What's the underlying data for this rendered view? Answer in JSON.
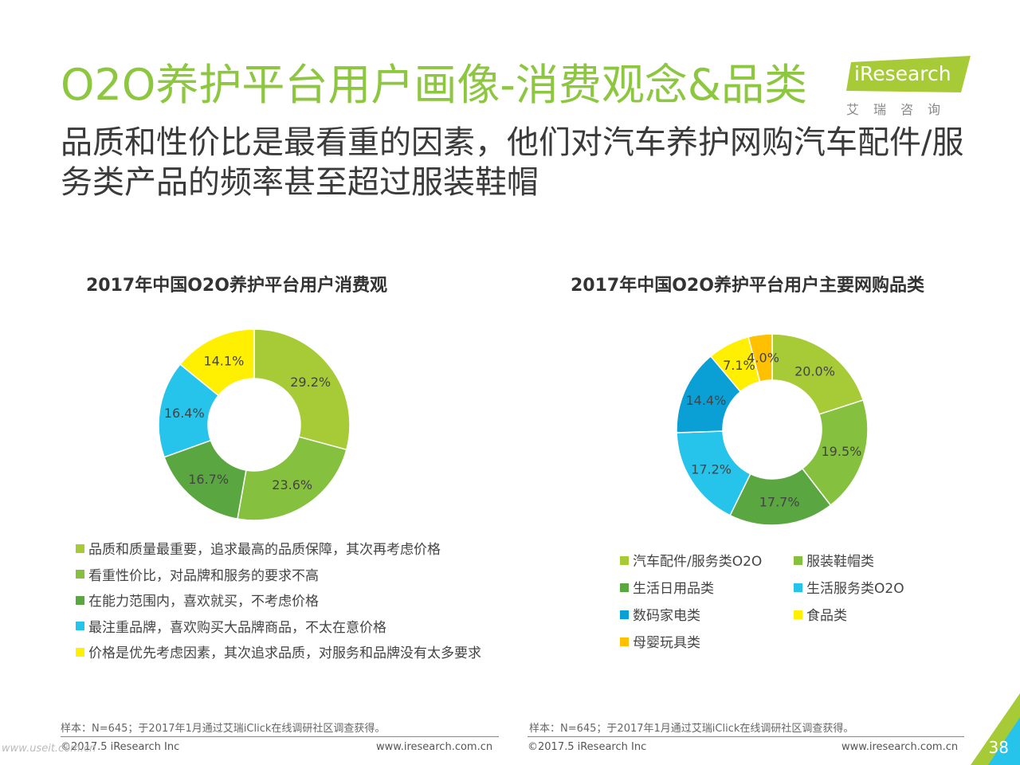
{
  "title": "O2O养护平台用户画像-消费观念&品类",
  "subtitle": "品质和性价比是最看重的因素，他们对汽车养护网购汽车配件/服务类产品的频率甚至超过服装鞋帽",
  "logo": {
    "brand": "iResearch",
    "cn": "艾瑞咨询"
  },
  "chart_data": [
    {
      "type": "pie",
      "title": "2017年中国O2O养护平台用户消费观",
      "labels": [
        "品质和质量最重要，追求最高的品质保障，其次再考虑价格",
        "看重性价比，对品牌和服务的要求不高",
        "在能力范围内，喜欢就买，不考虑价格",
        "最注重品牌，喜欢购买大品牌商品，不太在意价格",
        "价格是优先考虑因素，其次追求品质，对服务和品牌没有太多要求"
      ],
      "values": [
        29.2,
        23.6,
        16.7,
        16.4,
        14.1
      ],
      "value_labels": [
        "29.2%",
        "23.6%",
        "16.7%",
        "16.4%",
        "14.1%"
      ],
      "colors": [
        "#a6cb36",
        "#85c13f",
        "#5aa641",
        "#26c3ea",
        "#ffef00"
      ],
      "legend_position": "bottom"
    },
    {
      "type": "pie",
      "title": "2017年中国O2O养护平台用户主要网购品类",
      "labels": [
        "汽车配件/服务类O2O",
        "服装鞋帽类",
        "生活日用品类",
        "生活服务类O2O",
        "数码家电类",
        "食品类",
        "母婴玩具类"
      ],
      "values": [
        20.0,
        19.5,
        17.7,
        17.2,
        14.4,
        7.1,
        4.0
      ],
      "value_labels": [
        "20.0%",
        "19.5%",
        "17.7%",
        "17.2%",
        "14.4%",
        "7.1%",
        "4.0%"
      ],
      "colors": [
        "#a6cb36",
        "#85c13f",
        "#5aa641",
        "#26c3ea",
        "#0aa0d6",
        "#ffef00",
        "#ffc000"
      ],
      "legend_position": "bottom"
    }
  ],
  "notes": {
    "left": "样本：N=645；于2017年1月通过艾瑞iClick在线调研社区调查获得。",
    "right": "样本：N=645；于2017年1月通过艾瑞iClick在线调研社区调查获得。"
  },
  "footer": {
    "copyright": "©2017.5 iResearch Inc",
    "url": "www.iresearch.com.cn",
    "page": "38",
    "watermark": "www.useit.com.cn"
  }
}
